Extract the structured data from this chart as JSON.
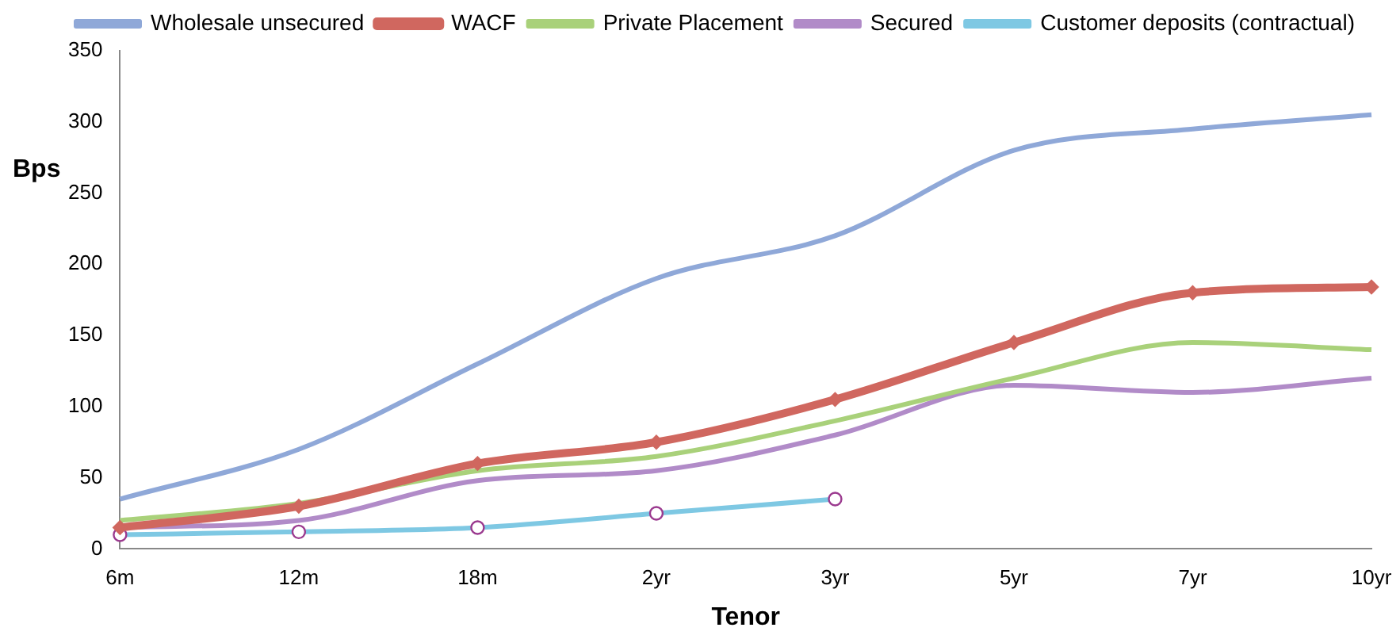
{
  "chart_data": {
    "type": "line",
    "xlabel": "Tenor",
    "ylabel": "Bps",
    "categories": [
      "6m",
      "12m",
      "18m",
      "2yr",
      "3yr",
      "5yr",
      "7yr",
      "10yr"
    ],
    "series": [
      {
        "name": "Wholesale unsecured",
        "color": "#8fa8d8",
        "marker": "none",
        "values": [
          35,
          70,
          130,
          190,
          220,
          280,
          295,
          305
        ]
      },
      {
        "name": "WACF",
        "color": "#d0675f",
        "marker": "diamond",
        "values": [
          15,
          30,
          60,
          75,
          105,
          145,
          180,
          184
        ]
      },
      {
        "name": "Private Placement",
        "color": "#a9d17a",
        "marker": "none",
        "values": [
          20,
          32,
          55,
          65,
          90,
          120,
          145,
          140
        ]
      },
      {
        "name": "Secured",
        "color": "#b18bc8",
        "marker": "none",
        "values": [
          15,
          20,
          48,
          55,
          80,
          115,
          110,
          120
        ]
      },
      {
        "name": "Customer deposits (contractual)",
        "color": "#7ec8e3",
        "marker": "circle",
        "values": [
          10,
          12,
          15,
          25,
          35,
          null,
          null,
          null
        ]
      }
    ],
    "ylim": [
      0,
      350
    ],
    "yticks": [
      0,
      50,
      100,
      150,
      200,
      250,
      300,
      350
    ],
    "grid": false,
    "legend": "top",
    "line_style": "solid"
  }
}
